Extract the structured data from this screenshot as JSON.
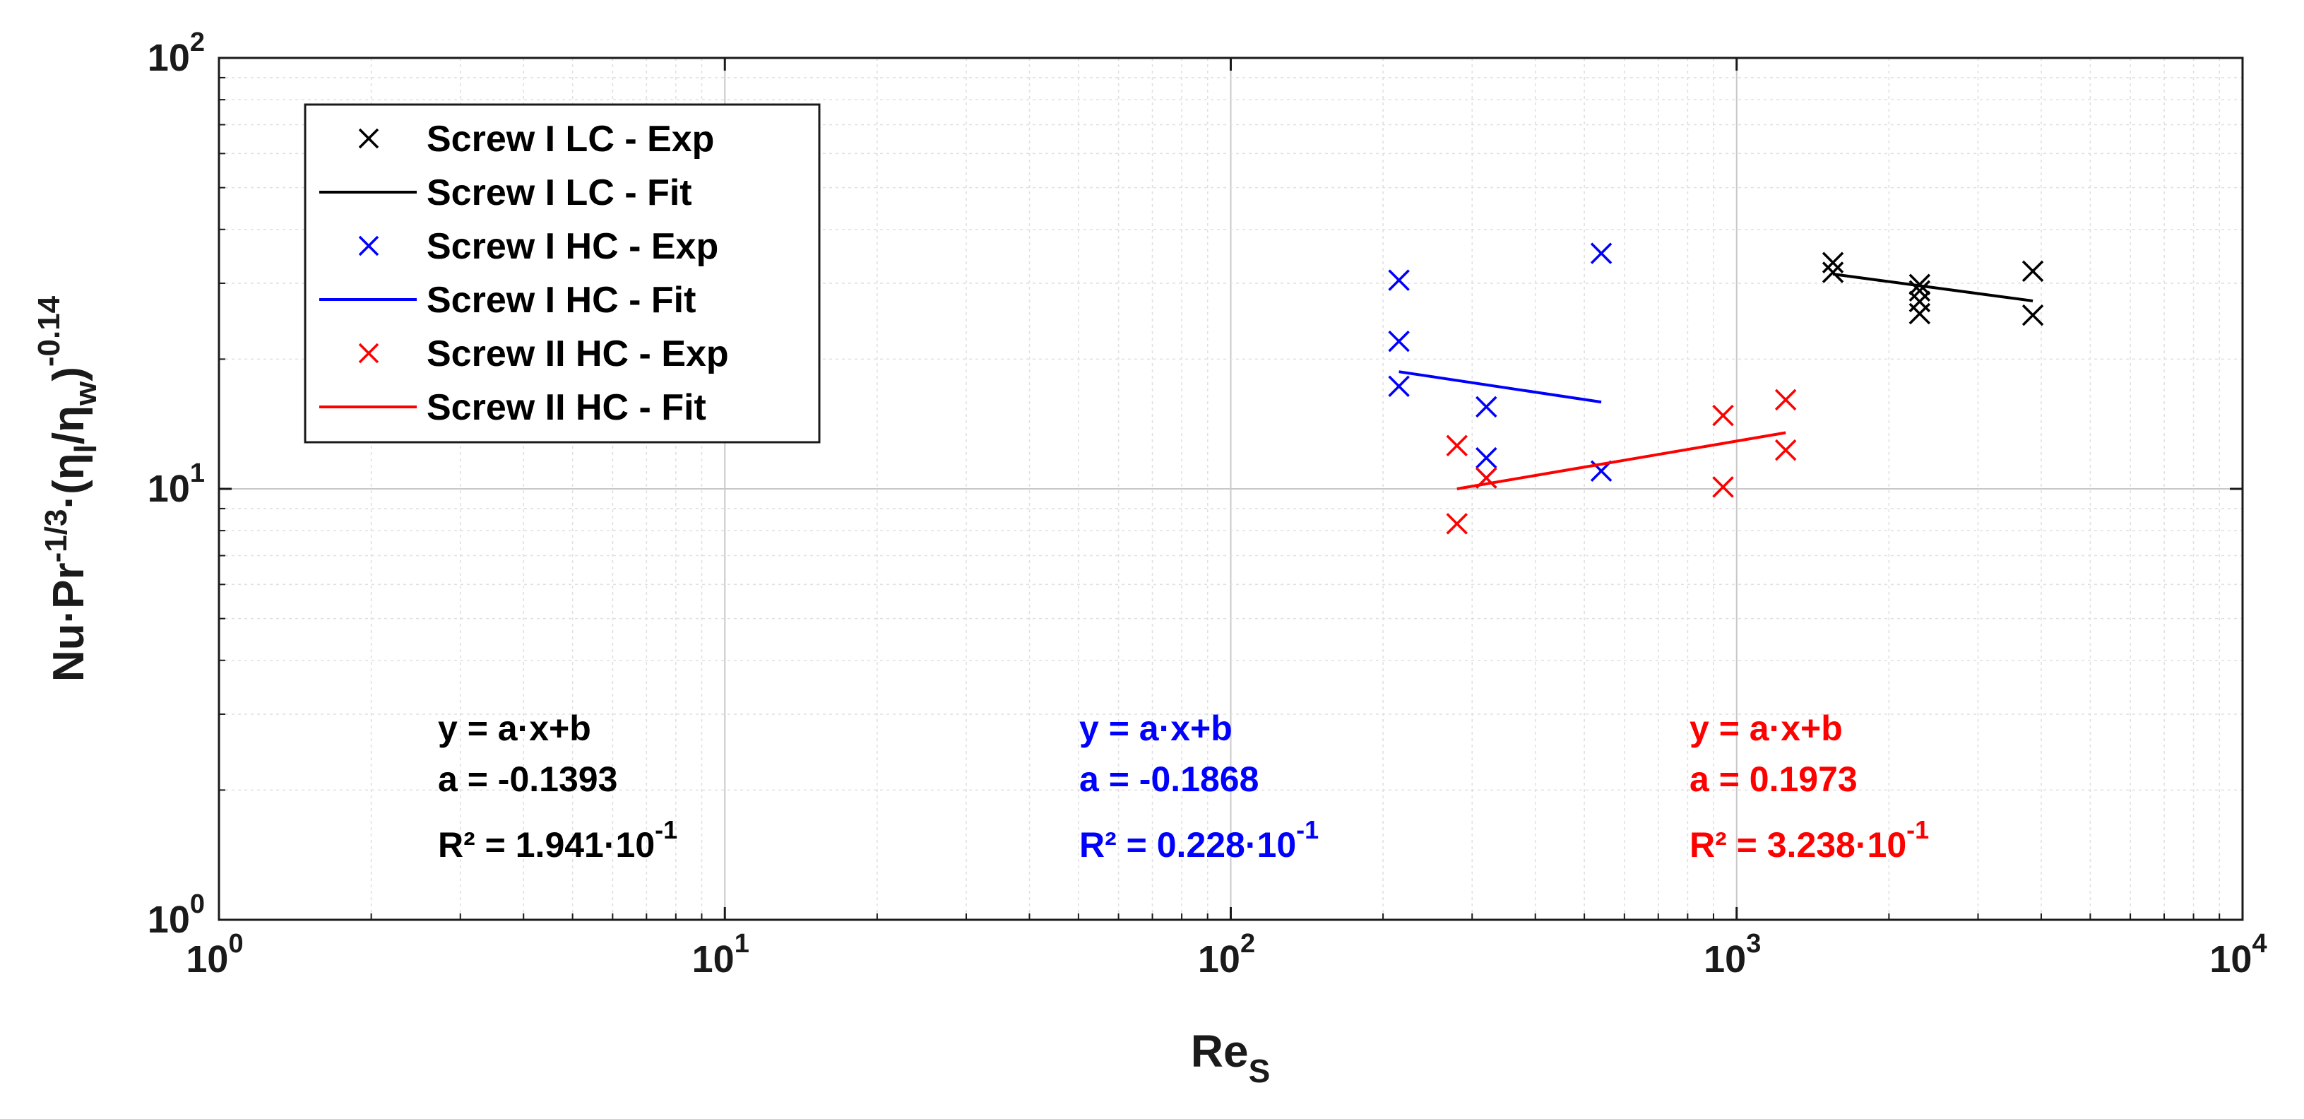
{
  "chart_data": {
    "type": "scatter",
    "x_scale": "log",
    "y_scale": "log",
    "xlim": [
      1,
      10000
    ],
    "ylim": [
      1,
      100
    ],
    "grid": true,
    "legend_position": "top-left",
    "xlabel": {
      "base": "Re",
      "sub": "S"
    },
    "ylabel": {
      "t1": "Nu·Pr",
      "sup1": "-1/3",
      "t2": "·(η",
      "sub1": "l",
      "t3": "/η",
      "sub2": "w",
      "t4": ")",
      "sup2": "-0.14"
    },
    "xticks": [
      {
        "value": 1,
        "base": "10",
        "exp": "0"
      },
      {
        "value": 10,
        "base": "10",
        "exp": "1"
      },
      {
        "value": 100,
        "base": "10",
        "exp": "2"
      },
      {
        "value": 1000,
        "base": "10",
        "exp": "3"
      },
      {
        "value": 10000,
        "base": "10",
        "exp": "4"
      }
    ],
    "yticks": [
      {
        "value": 1,
        "base": "10",
        "exp": "0"
      },
      {
        "value": 10,
        "base": "10",
        "exp": "1"
      },
      {
        "value": 100,
        "base": "10",
        "exp": "2"
      }
    ],
    "series": [
      {
        "name": "Screw I LC - Exp",
        "kind": "points",
        "color": "#000000",
        "points": [
          [
            1550,
            33.5
          ],
          [
            1550,
            31.8
          ],
          [
            2300,
            29.8
          ],
          [
            2300,
            28.8
          ],
          [
            2300,
            27.2
          ],
          [
            2300,
            25.5
          ],
          [
            3850,
            32.0
          ],
          [
            3850,
            25.3
          ]
        ]
      },
      {
        "name": "Screw I LC  - Fit",
        "kind": "line",
        "color": "#000000",
        "points": [
          [
            1550,
            31.5
          ],
          [
            3850,
            27.3
          ]
        ]
      },
      {
        "name": "Screw I HC - Exp",
        "kind": "points",
        "color": "#0000ff",
        "points": [
          [
            215,
            30.5
          ],
          [
            215,
            22.0
          ],
          [
            215,
            17.3
          ],
          [
            320,
            15.5
          ],
          [
            320,
            11.8
          ],
          [
            320,
            10.6
          ],
          [
            540,
            35.2
          ],
          [
            540,
            11.0
          ]
        ]
      },
      {
        "name": "Screw I HC - Fit",
        "kind": "line",
        "color": "#0000ff",
        "points": [
          [
            215,
            18.7
          ],
          [
            540,
            15.9
          ]
        ]
      },
      {
        "name": "Screw II HC - Exp",
        "kind": "points",
        "color": "#ff0000",
        "points": [
          [
            280,
            12.6
          ],
          [
            280,
            8.3
          ],
          [
            320,
            10.6
          ],
          [
            940,
            14.8
          ],
          [
            940,
            10.1
          ],
          [
            1250,
            16.1
          ],
          [
            1250,
            12.3
          ]
        ]
      },
      {
        "name": "Screw II HC - Fit",
        "kind": "line",
        "color": "#ff0000",
        "points": [
          [
            280,
            10.0
          ],
          [
            1250,
            13.5
          ]
        ]
      }
    ],
    "annotations": [
      {
        "color": "#000000",
        "eq": "y   =  a·x+b",
        "a": "a   = -0.1393",
        "r2_prefix": "R²  = 1.941·10",
        "r2_exp": "-1"
      },
      {
        "color": "#0000ff",
        "eq": "y   =  a·x+b",
        "a": "a   = -0.1868",
        "r2_prefix": "R²  = 0.228·10",
        "r2_exp": "-1"
      },
      {
        "color": "#ff0000",
        "eq": "y   =  a·x+b",
        "a": "a   = 0.1973",
        "r2_prefix": "R²  = 3.238·10",
        "r2_exp": "-1"
      }
    ]
  }
}
